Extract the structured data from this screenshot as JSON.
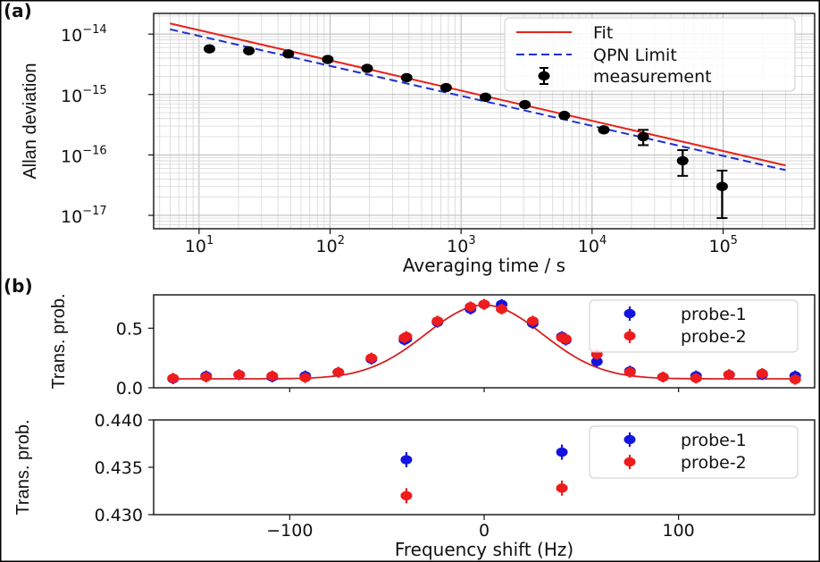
{
  "chart_data": [
    {
      "panel_label": "(a)",
      "type": "scatter",
      "xscale": "log",
      "yscale": "log",
      "xlabel": "Averaging time / s",
      "ylabel": "Allan deviation",
      "xlim": [
        4.5,
        500000
      ],
      "ylim": [
        6e-18,
        2.2e-14
      ],
      "xticks": [
        {
          "base": "10",
          "exp": "1",
          "v": 10
        },
        {
          "base": "10",
          "exp": "2",
          "v": 100
        },
        {
          "base": "10",
          "exp": "3",
          "v": 1000
        },
        {
          "base": "10",
          "exp": "4",
          "v": 10000
        },
        {
          "base": "10",
          "exp": "5",
          "v": 100000
        }
      ],
      "yticks": [
        {
          "base": "10",
          "exp": "−14",
          "v": 1e-14
        },
        {
          "base": "10",
          "exp": "−15",
          "v": 1e-15
        },
        {
          "base": "10",
          "exp": "−16",
          "v": 1e-16
        },
        {
          "base": "10",
          "exp": "−17",
          "v": 1e-17
        }
      ],
      "grid": true,
      "legend": {
        "placement": "top-right",
        "entries": [
          "Fit",
          "QPN Limit",
          "measurement"
        ]
      },
      "series": [
        {
          "name": "Fit",
          "kind": "line",
          "style": "solid",
          "color": "#e8221b",
          "x": [
            6,
            300000
          ],
          "y": [
            1.5e-14,
            6.7e-17
          ]
        },
        {
          "name": "QPN Limit",
          "kind": "line",
          "style": "dashed",
          "color": "#1f2fd0",
          "x": [
            6,
            300000
          ],
          "y": [
            1.2e-14,
            5.6e-17
          ]
        },
        {
          "name": "measurement",
          "kind": "errorbar",
          "color": "#000000",
          "x": [
            12,
            24,
            48,
            96,
            192,
            384,
            768,
            1536,
            3072,
            6144,
            12288,
            24576,
            49152,
            98304
          ],
          "y": [
            5.7e-15,
            5.3e-15,
            4.7e-15,
            3.8e-15,
            2.7e-15,
            1.9e-15,
            1.3e-15,
            9e-16,
            6.8e-16,
            4.5e-16,
            2.6e-16,
            2e-16,
            8e-17,
            3e-17
          ],
          "ylo": [
            5.5e-15,
            5.1e-15,
            4.5e-15,
            3.65e-15,
            2.6e-15,
            1.82e-15,
            1.24e-15,
            8.5e-16,
            6.3e-16,
            4.1e-16,
            2.2e-16,
            1.45e-16,
            4.5e-17,
            9e-18
          ],
          "yhi": [
            5.9e-15,
            5.5e-15,
            4.9e-15,
            3.95e-15,
            2.8e-15,
            1.98e-15,
            1.36e-15,
            9.5e-16,
            7.3e-16,
            4.9e-16,
            3e-16,
            2.6e-16,
            1.2e-16,
            5.5e-17
          ]
        }
      ]
    },
    {
      "panel_label": "(b)",
      "type": "scatter",
      "ylabel": "Trans. prob.",
      "xlim": [
        -170,
        170
      ],
      "ylim": [
        0.0,
        0.78
      ],
      "yticks": [
        {
          "label": "0.0",
          "v": 0.0
        },
        {
          "label": "0.5",
          "v": 0.5
        }
      ],
      "legend": {
        "placement": "top-right",
        "entries": [
          "probe-1",
          "probe-2"
        ]
      },
      "fit_color": "#d62020",
      "fit": {
        "baseline": 0.075,
        "amplitude": 0.62,
        "center": 0,
        "sigma": 30
      },
      "series": [
        {
          "name": "probe-1",
          "color": "#1414e0",
          "x": [
            -160,
            -143,
            -126,
            -109,
            -92,
            -75,
            -58,
            -41,
            -40,
            -24,
            -7,
            0,
            9,
            25,
            40,
            42,
            58,
            75,
            92,
            109,
            126,
            143,
            160
          ],
          "y": [
            0.075,
            0.1,
            0.11,
            0.09,
            0.1,
            0.13,
            0.24,
            0.4,
            0.41,
            0.55,
            0.66,
            0.7,
            0.7,
            0.54,
            0.43,
            0.4,
            0.22,
            0.14,
            0.09,
            0.1,
            0.11,
            0.11,
            0.1
          ]
        },
        {
          "name": "probe-2",
          "color": "#ee1c1c",
          "x": [
            -160,
            -143,
            -126,
            -109,
            -92,
            -75,
            -58,
            -41,
            -40,
            -24,
            -7,
            0,
            9,
            25,
            40,
            42,
            58,
            75,
            92,
            109,
            126,
            143,
            160
          ],
          "y": [
            0.08,
            0.09,
            0.11,
            0.1,
            0.085,
            0.13,
            0.25,
            0.42,
            0.43,
            0.56,
            0.68,
            0.7,
            0.66,
            0.56,
            0.42,
            0.41,
            0.28,
            0.13,
            0.09,
            0.08,
            0.11,
            0.12,
            0.07
          ]
        }
      ]
    },
    {
      "type": "scatter",
      "ylabel": "Trans. prob.",
      "xlabel": "Frequency shift (Hz)",
      "xlim": [
        -170,
        170
      ],
      "ylim": [
        0.43,
        0.44
      ],
      "xticks": [
        {
          "label": "−100",
          "v": -100
        },
        {
          "label": "0",
          "v": 0
        },
        {
          "label": "100",
          "v": 100
        }
      ],
      "yticks": [
        {
          "label": "0.430",
          "v": 0.43
        },
        {
          "label": "0.435",
          "v": 0.435
        },
        {
          "label": "0.440",
          "v": 0.44
        }
      ],
      "legend": {
        "placement": "top-right",
        "entries": [
          "probe-1",
          "probe-2"
        ]
      },
      "series": [
        {
          "name": "probe-1",
          "color": "#1414e0",
          "x": [
            -40,
            40
          ],
          "y": [
            0.4358,
            0.4366
          ],
          "yerr": [
            0.0008,
            0.0008
          ]
        },
        {
          "name": "probe-2",
          "color": "#ee1c1c",
          "x": [
            -40,
            40
          ],
          "y": [
            0.432,
            0.4328
          ],
          "yerr": [
            0.0008,
            0.0008
          ]
        }
      ]
    }
  ]
}
